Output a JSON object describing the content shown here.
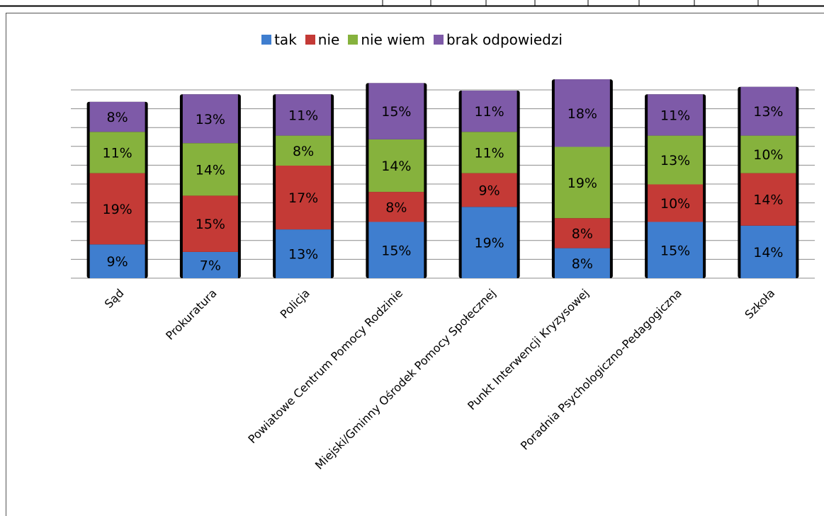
{
  "chart_data": {
    "type": "bar",
    "stacked": true,
    "categories": [
      "Sąd",
      "Prokuratura",
      "Policja",
      "Powiatowe Centrum Pomocy Rodzinie",
      "Miejski/Gminny Ośrodek Pomocy Społecznej",
      "Punkt Interwencji Kryzysowej",
      "Poradnia Psychologiczno-Pedagogiczna",
      "Szkoła"
    ],
    "series": [
      {
        "name": "tak",
        "color": "#3f7ecf",
        "values": [
          9,
          7,
          13,
          15,
          19,
          8,
          15,
          14
        ]
      },
      {
        "name": "nie",
        "color": "#c43a36",
        "values": [
          19,
          15,
          17,
          8,
          9,
          8,
          10,
          14
        ]
      },
      {
        "name": "nie wiem",
        "color": "#86b23d",
        "values": [
          11,
          14,
          8,
          14,
          11,
          19,
          13,
          10
        ]
      },
      {
        "name": "brak odpowiedzi",
        "color": "#7e5aa8",
        "values": [
          8,
          13,
          11,
          15,
          11,
          18,
          11,
          13
        ]
      }
    ],
    "value_suffix": "%",
    "legend_position": "top",
    "grid": true
  }
}
